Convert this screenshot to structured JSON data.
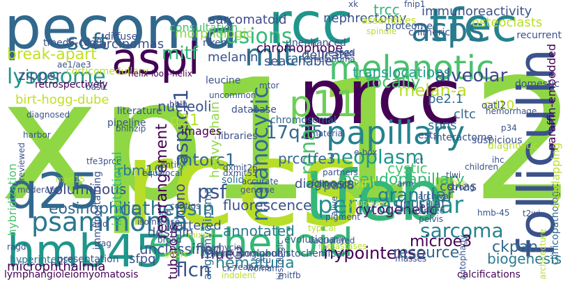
{
  "words": [
    {
      "t": "xp11.2",
      "c": "#8fd744"
    },
    {
      "t": "rccs",
      "c": "#b8de29"
    },
    {
      "t": "prcc",
      "c": "#440154"
    },
    {
      "t": "pecoma",
      "c": "#31688e"
    },
    {
      "t": "rcc",
      "c": "#1f968b"
    },
    {
      "t": "tfeb",
      "c": "#35b779"
    },
    {
      "t": "tfec",
      "c": "#26828e"
    },
    {
      "t": "aspl",
      "c": "#440154"
    },
    {
      "t": "folliculin",
      "c": "#3b528b"
    },
    {
      "t": "epithelioid",
      "c": "#35b779"
    },
    {
      "t": "hmb45",
      "c": "#1f968b"
    },
    {
      "t": "papillary",
      "c": "#26828e"
    },
    {
      "t": "q25",
      "c": "#31688e"
    },
    {
      "t": "asps",
      "c": "#2a788e"
    },
    {
      "t": "melanotic",
      "c": "#4ac16d"
    },
    {
      "t": "mit",
      "c": "#2a788e"
    },
    {
      "t": "p11",
      "c": "#6ece58"
    },
    {
      "t": "psammoma",
      "c": "#2a788e"
    },
    {
      "t": "perivascular",
      "c": "#21918c"
    },
    {
      "t": "fusions",
      "c": "#35b779"
    },
    {
      "t": "soft",
      "c": "#31688e"
    },
    {
      "t": "lysosome",
      "c": "#1f968b"
    },
    {
      "t": "melanocytic",
      "c": "#31688e"
    },
    {
      "t": "alveolar",
      "c": "#3e4989"
    },
    {
      "t": "cathepsin",
      "c": "#2a788e"
    },
    {
      "t": "neoplasm",
      "c": "#1f968b"
    },
    {
      "t": "eosinophilic",
      "c": "#31688e"
    },
    {
      "t": "sarcoma",
      "c": "#26828e"
    },
    {
      "t": "mitf",
      "c": "#35b779"
    },
    {
      "t": "trcc",
      "c": "#35b779"
    },
    {
      "t": "focally",
      "c": "#4ac16d"
    },
    {
      "t": "break-apart",
      "c": "#c2df23"
    },
    {
      "t": "translocations",
      "c": "#1fa088"
    },
    {
      "t": "17q25",
      "c": "#31688e"
    },
    {
      "t": "pseudopapillary",
      "c": "#35b779"
    },
    {
      "t": "aspscr1",
      "c": "#3b528b"
    },
    {
      "t": "rearrangement",
      "c": "#440154"
    },
    {
      "t": "granular",
      "c": "#2a788e"
    },
    {
      "t": "melan-a",
      "c": "#b8de29"
    },
    {
      "t": "renal",
      "c": "#4ac16d"
    },
    {
      "t": "cytogenetic",
      "c": "#471164"
    },
    {
      "t": "hematuria",
      "c": "#26828e"
    },
    {
      "t": "hypointense",
      "c": "#440154"
    },
    {
      "t": "resource",
      "c": "#31688e"
    },
    {
      "t": "microe3",
      "c": "#440154"
    },
    {
      "t": "ckpan",
      "c": "#31688e"
    },
    {
      "t": "flcn",
      "c": "#3b528b"
    },
    {
      "t": "mue3",
      "c": "#472c7a"
    },
    {
      "t": "psf",
      "c": "#3b528b"
    },
    {
      "t": "nono",
      "c": "#3e4989"
    },
    {
      "t": "mtorc1",
      "c": "#31688e"
    },
    {
      "t": "q21",
      "c": "#b8de29"
    },
    {
      "t": "rbm10",
      "c": "#2a788e"
    },
    {
      "t": "fluorescence",
      "c": "#3b528b"
    },
    {
      "t": "voluminous",
      "c": "#3e4989"
    },
    {
      "t": "annotated",
      "c": "#2a788e"
    },
    {
      "t": "biogenesis",
      "c": "#2a788e"
    },
    {
      "t": "prcctfe3",
      "c": "#31688e"
    },
    {
      "t": "cystic",
      "c": "#4ac16d"
    },
    {
      "t": "nucleoli",
      "c": "#3b528b"
    },
    {
      "t": "breakpoint",
      "c": "#c2df23"
    },
    {
      "t": "unusual",
      "c": "#3b528b"
    },
    {
      "t": "tattered",
      "c": "#3b528b"
    },
    {
      "t": "unclassified",
      "c": "#3b528b"
    },
    {
      "t": "cdnas",
      "c": "#3b528b"
    },
    {
      "t": "spns",
      "c": "#2a788e"
    },
    {
      "t": "cltc",
      "c": "#31688e"
    },
    {
      "t": "pe2.1",
      "c": "#31688e"
    },
    {
      "t": "cd10",
      "c": "#c2df23"
    },
    {
      "t": "pax8",
      "c": "#31688e"
    },
    {
      "t": "diagnosis",
      "c": "#3b528b"
    },
    {
      "t": "morphologic",
      "c": "#8fd744"
    },
    {
      "t": "consultation",
      "c": "#4ac16d"
    },
    {
      "t": "sarcomatoid",
      "c": "#3e4989"
    },
    {
      "t": "nephrectomy",
      "c": "#3b528b"
    },
    {
      "t": "immunoreactivity",
      "c": "#3b528b"
    },
    {
      "t": "osteoclasts",
      "c": "#b8de29"
    },
    {
      "t": "zipper",
      "c": "#3b528b"
    },
    {
      "t": "birt-hogg-dube",
      "c": "#c2df23"
    },
    {
      "t": "microphthalmia",
      "c": "#440154"
    },
    {
      "t": "tuberous",
      "c": "#440154"
    },
    {
      "t": "sfpq",
      "c": "#3b528b"
    },
    {
      "t": "desmin",
      "c": "#3b528b"
    },
    {
      "t": "heavy-chain",
      "c": "#8fd744"
    },
    {
      "t": "images",
      "c": "#440154"
    },
    {
      "t": "institutional",
      "c": "#35b779"
    },
    {
      "t": "hybridization",
      "c": "#4ac16d"
    },
    {
      "t": "angiomyolipoma",
      "c": "#31688e"
    },
    {
      "t": "solid",
      "c": "#2a788e"
    },
    {
      "t": "searchable",
      "c": "#3b528b"
    },
    {
      "t": "chromophobe",
      "c": "#440154"
    },
    {
      "t": "carcinomas",
      "c": "#3b528b"
    },
    {
      "t": "melanin",
      "c": "#3b528b"
    },
    {
      "t": "delicate",
      "c": "#3b528b"
    },
    {
      "t": "rare",
      "c": "#31688e"
    },
    {
      "t": "paraffin-embedded",
      "c": "#440154"
    },
    {
      "t": "clinicopathologic",
      "c": "#31688e"
    },
    {
      "t": "overlapping",
      "c": "#b8de29"
    },
    {
      "t": "lymphangioleiomyomatosis",
      "c": "#440154"
    },
    {
      "t": "calcifications",
      "c": "#440154"
    },
    {
      "t": "hyperintense",
      "c": "#2a788e"
    },
    {
      "t": "immunoglobulin",
      "c": "#3b528b"
    },
    {
      "t": "immunohistochemical",
      "c": "#3b528b"
    },
    {
      "t": "evolutionary",
      "c": "#31688e"
    },
    {
      "t": "presentation",
      "c": "#3b528b"
    },
    {
      "t": "chromosomal",
      "c": "#31688e"
    },
    {
      "t": "interactome",
      "c": "#3b528b"
    },
    {
      "t": "retrospectively",
      "c": "#440154"
    },
    {
      "t": "corticomedullary",
      "c": "#b8de29"
    },
    {
      "t": "helix-loop-helix",
      "c": "#440154"
    },
    {
      "t": "literature",
      "c": "#3b528b"
    },
    {
      "t": "pipeline",
      "c": "#3b528b"
    },
    {
      "t": "database",
      "c": "#3b528b"
    },
    {
      "t": "libraries",
      "c": "#3b528b"
    },
    {
      "t": "entity",
      "c": "#3b528b"
    },
    {
      "t": "equivocal",
      "c": "#3b528b"
    },
    {
      "t": "accurate",
      "c": "#3b528b"
    },
    {
      "t": "genome",
      "c": "#3b528b"
    },
    {
      "t": "vacuolated",
      "c": "#3b528b"
    },
    {
      "t": "follow-up",
      "c": "#3b528b"
    },
    {
      "t": "material",
      "c": "#3b528b"
    },
    {
      "t": "pigment",
      "c": "#3b528b"
    },
    {
      "t": "suspicious",
      "c": "#3b528b"
    },
    {
      "t": "children",
      "c": "#3b528b"
    },
    {
      "t": "diagnostic",
      "c": "#b8de29"
    },
    {
      "t": "e-box",
      "c": "#3b528b"
    },
    {
      "t": "ests",
      "c": "#3b528b"
    },
    {
      "t": "oatl2",
      "c": "#3b528b"
    },
    {
      "t": "hemorrhage",
      "c": "#3b528b"
    },
    {
      "t": "domestic",
      "c": "#3b528b"
    },
    {
      "t": "recurrent",
      "c": "#3b528b"
    },
    {
      "t": "assemblies",
      "c": "#b8de29"
    },
    {
      "t": "proteome",
      "c": "#3b528b"
    },
    {
      "t": "chimeric",
      "c": "#3b528b"
    },
    {
      "t": "unenhanced",
      "c": "#3b528b"
    },
    {
      "t": "nested",
      "c": "#3b528b"
    },
    {
      "t": "uncommon",
      "c": "#3b528b"
    },
    {
      "t": "leucine",
      "c": "#3b528b"
    },
    {
      "t": "riken",
      "c": "#3b528b"
    },
    {
      "t": "diffuse",
      "c": "#3b528b"
    },
    {
      "t": "tmed6-cog8",
      "c": "#3b528b"
    },
    {
      "t": "fnip1",
      "c": "#3b528b"
    },
    {
      "t": "melanoma",
      "c": "#3b528b"
    },
    {
      "t": "xk",
      "c": "#3b528b"
    },
    {
      "t": "spindle",
      "c": "#b8de29"
    },
    {
      "t": "tags",
      "c": "#3b528b"
    },
    {
      "t": "basic",
      "c": "#3b528b"
    },
    {
      "t": "bhlh",
      "c": "#3b528b"
    },
    {
      "t": "ae1/ae3",
      "c": "#3b528b"
    },
    {
      "t": "diagnosed",
      "c": "#3b528b"
    },
    {
      "t": "harbor",
      "c": "#3b528b"
    },
    {
      "t": "bhlhzip",
      "c": "#3b528b"
    },
    {
      "t": "tfe3prcc",
      "c": "#3b528b"
    },
    {
      "t": "reviewed",
      "c": "#3b528b"
    },
    {
      "t": "moderate",
      "c": "#3b528b"
    },
    {
      "t": "med15",
      "c": "#b8de29"
    },
    {
      "t": "immunostaining",
      "c": "#3b528b"
    },
    {
      "t": "add",
      "c": "#3b528b"
    },
    {
      "t": "isointense",
      "c": "#3b528b"
    },
    {
      "t": "contigs",
      "c": "#3b528b"
    },
    {
      "t": "dxmit26",
      "c": "#3b528b"
    },
    {
      "t": "dxmit55",
      "c": "#3b528b"
    },
    {
      "t": "eb",
      "c": "#3b528b"
    },
    {
      "t": "broad",
      "c": "#3b528b"
    },
    {
      "t": "rapamycin",
      "c": "#3b528b"
    },
    {
      "t": "situ",
      "c": "#3b528b"
    },
    {
      "t": "ragd",
      "c": "#3b528b"
    },
    {
      "t": "rag",
      "c": "#3b528b"
    },
    {
      "t": "effort",
      "c": "#b8de29"
    },
    {
      "t": "ck7",
      "c": "#3b528b"
    },
    {
      "t": "indolent",
      "c": "#b8de29"
    },
    {
      "t": "mitfb",
      "c": "#3b528b"
    },
    {
      "t": "woman",
      "c": "#3b528b"
    },
    {
      "t": "features",
      "c": "#3b528b"
    },
    {
      "t": "histologic",
      "c": "#3b528b"
    },
    {
      "t": "metastases",
      "c": "#b8de29"
    },
    {
      "t": "typical",
      "c": "#b8de29"
    },
    {
      "t": "mixed",
      "c": "#b8de29"
    },
    {
      "t": "partners",
      "c": "#3b528b"
    },
    {
      "t": "ct",
      "c": "#3b528b"
    },
    {
      "t": "fish",
      "c": "#b8de29"
    },
    {
      "t": "alive",
      "c": "#3b528b"
    },
    {
      "t": "archival",
      "c": "#3b528b"
    },
    {
      "t": "cytoplasm",
      "c": "#b8de29"
    },
    {
      "t": "strong",
      "c": "#3b528b"
    },
    {
      "t": "pelvis",
      "c": "#3b528b"
    },
    {
      "t": "hmb-45",
      "c": "#3b528b"
    },
    {
      "t": "autophagy",
      "c": "#3b528b"
    },
    {
      "t": "masses",
      "c": "#3b528b"
    },
    {
      "t": "architecture",
      "c": "#b8de29"
    },
    {
      "t": "ranged",
      "c": "#3b528b"
    },
    {
      "t": "arm",
      "c": "#3b528b"
    },
    {
      "t": "p34",
      "c": "#3b528b"
    },
    {
      "t": "ihc",
      "c": "#3b528b"
    },
    {
      "t": "tlwi",
      "c": "#3b528b"
    },
    {
      "t": "t2wi",
      "c": "#3b528b"
    },
    {
      "t": "mtor",
      "c": "#3b528b"
    }
  ]
}
